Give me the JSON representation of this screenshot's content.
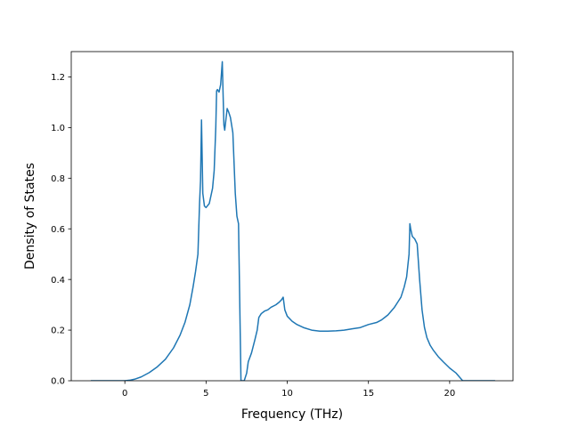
{
  "chart_data": {
    "type": "line",
    "title": "",
    "xlabel": "Frequency (THz)",
    "ylabel": "Density of States",
    "xlim": [
      -3.3,
      23.9
    ],
    "ylim": [
      0.0,
      1.3
    ],
    "xticks": [
      0,
      5,
      10,
      15,
      20
    ],
    "xtick_labels": [
      "0",
      "5",
      "10",
      "15",
      "20"
    ],
    "yticks": [
      0.0,
      0.2,
      0.4,
      0.6,
      0.8,
      1.0,
      1.2
    ],
    "ytick_labels": [
      "0.0",
      "0.2",
      "0.4",
      "0.6",
      "0.8",
      "1.0",
      "1.2"
    ],
    "grid": false,
    "series": [
      {
        "color": "#1f77b4",
        "x": [
          -2.1,
          -1.0,
          0.0,
          0.3,
          0.6,
          1.0,
          1.5,
          2.0,
          2.5,
          3.0,
          3.4,
          3.7,
          4.0,
          4.2,
          4.35,
          4.5,
          4.6,
          4.66,
          4.72,
          4.8,
          4.9,
          5.0,
          5.2,
          5.4,
          5.5,
          5.6,
          5.65,
          5.7,
          5.8,
          5.9,
          6.0,
          6.05,
          6.1,
          6.15,
          6.3,
          6.4,
          6.5,
          6.65,
          6.8,
          6.9,
          7.0,
          7.15,
          7.25,
          7.35,
          7.5,
          7.6,
          7.8,
          8.0,
          8.15,
          8.25,
          8.4,
          8.6,
          8.8,
          9.0,
          9.3,
          9.5,
          9.65,
          9.75,
          9.85,
          10.0,
          10.3,
          10.6,
          11.0,
          11.5,
          12.0,
          12.5,
          13.0,
          13.5,
          14.0,
          14.5,
          15.0,
          15.5,
          15.8,
          16.0,
          16.2,
          16.4,
          16.6,
          16.8,
          17.0,
          17.2,
          17.35,
          17.5,
          17.55,
          17.6,
          17.7,
          17.85,
          18.0,
          18.15,
          18.3,
          18.45,
          18.6,
          18.8,
          19.0,
          19.3,
          19.6,
          20.0,
          20.4,
          20.6,
          20.8,
          21.2,
          22.0,
          22.8
        ],
        "y": [
          0.0,
          0.0,
          0.0,
          0.002,
          0.006,
          0.015,
          0.032,
          0.055,
          0.085,
          0.13,
          0.18,
          0.23,
          0.3,
          0.37,
          0.43,
          0.5,
          0.7,
          0.79,
          1.03,
          0.74,
          0.69,
          0.684,
          0.7,
          0.76,
          0.83,
          1.0,
          1.145,
          1.15,
          1.14,
          1.17,
          1.26,
          1.13,
          1.01,
          0.99,
          1.075,
          1.06,
          1.04,
          0.98,
          0.74,
          0.65,
          0.62,
          0.0,
          0.0,
          0.0,
          0.03,
          0.075,
          0.11,
          0.16,
          0.2,
          0.25,
          0.265,
          0.275,
          0.28,
          0.29,
          0.3,
          0.31,
          0.32,
          0.33,
          0.28,
          0.255,
          0.235,
          0.222,
          0.21,
          0.2,
          0.196,
          0.196,
          0.197,
          0.2,
          0.205,
          0.21,
          0.222,
          0.23,
          0.24,
          0.25,
          0.26,
          0.275,
          0.29,
          0.31,
          0.33,
          0.37,
          0.41,
          0.5,
          0.62,
          0.6,
          0.57,
          0.56,
          0.54,
          0.4,
          0.28,
          0.21,
          0.17,
          0.14,
          0.12,
          0.095,
          0.075,
          0.05,
          0.03,
          0.015,
          0.0,
          0.0,
          0.0,
          0.0
        ]
      }
    ]
  }
}
